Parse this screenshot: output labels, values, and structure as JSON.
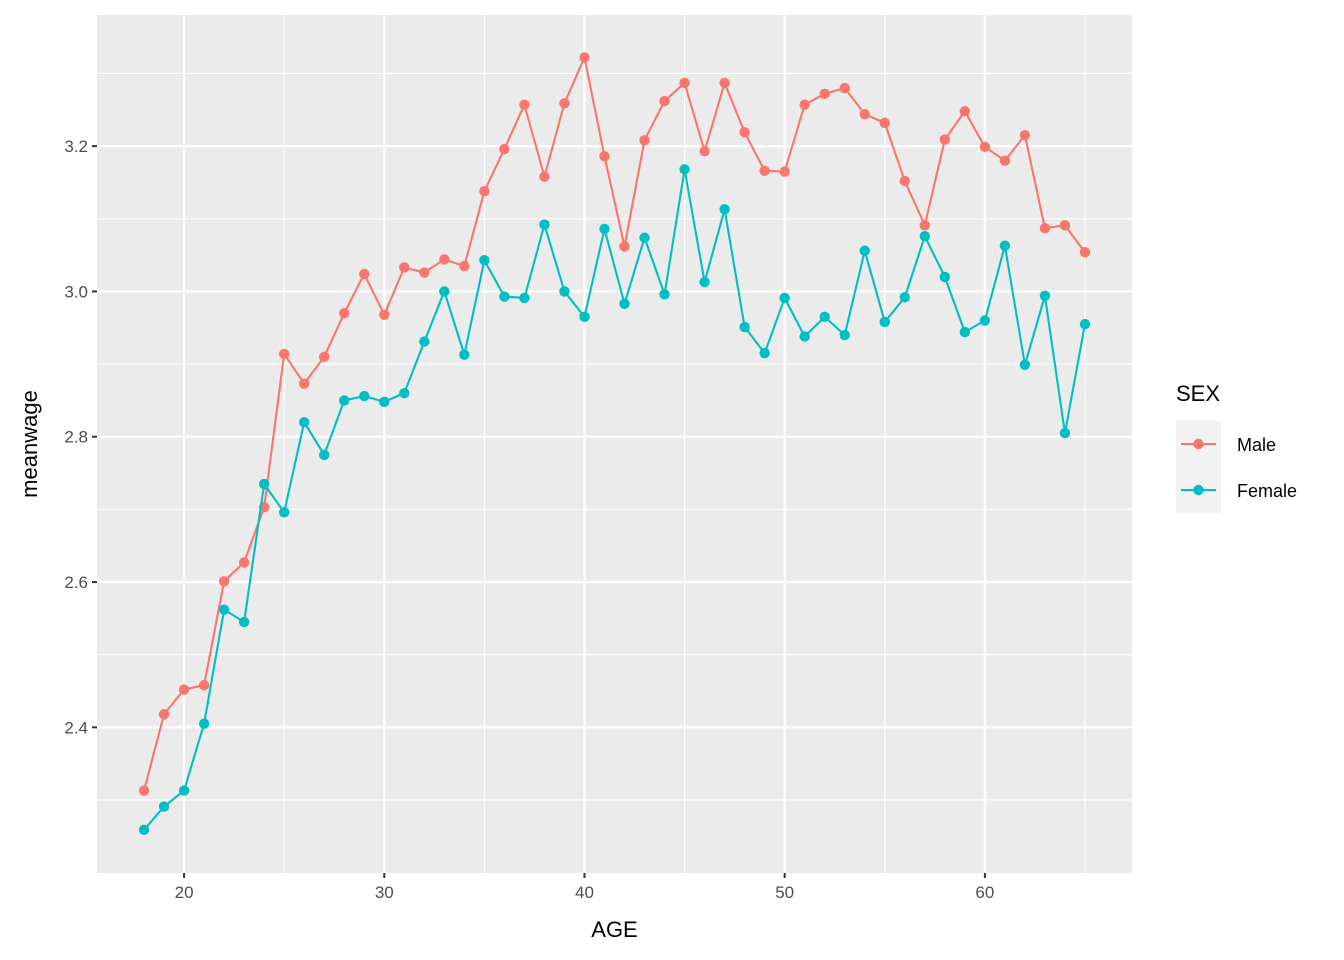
{
  "chart_data": {
    "type": "line",
    "title": "",
    "xlabel": "AGE",
    "ylabel": "meanwage",
    "xlim": [
      15.65,
      67.35
    ],
    "ylim": [
      2.1995,
      3.3805
    ],
    "x_ticks": [
      20,
      30,
      40,
      50,
      60
    ],
    "y_ticks": [
      2.4,
      2.6,
      2.8,
      3.0,
      3.2
    ],
    "x_tick_labels": [
      "20",
      "30",
      "40",
      "50",
      "60"
    ],
    "y_tick_labels": [
      "2.4",
      "2.6",
      "2.8",
      "3.0",
      "3.2"
    ],
    "grid": true,
    "legend": {
      "title": "SEX",
      "position": "right"
    },
    "x": [
      18,
      19,
      20,
      21,
      22,
      23,
      24,
      25,
      26,
      27,
      28,
      29,
      30,
      31,
      32,
      33,
      34,
      35,
      36,
      37,
      38,
      39,
      40,
      41,
      42,
      43,
      44,
      45,
      46,
      47,
      48,
      49,
      50,
      51,
      52,
      53,
      54,
      55,
      56,
      57,
      58,
      59,
      60,
      61,
      62,
      63,
      64,
      65
    ],
    "series": [
      {
        "name": "Male",
        "color": "#F8766D",
        "values": [
          2.313,
          2.418,
          2.452,
          2.458,
          2.601,
          2.627,
          2.703,
          2.914,
          2.873,
          2.91,
          2.97,
          3.024,
          2.968,
          3.033,
          3.026,
          3.044,
          3.035,
          3.138,
          3.196,
          3.257,
          3.158,
          3.259,
          3.322,
          3.186,
          3.062,
          3.208,
          3.262,
          3.287,
          3.193,
          3.287,
          3.219,
          3.166,
          3.165,
          3.257,
          3.272,
          3.28,
          3.244,
          3.232,
          3.152,
          3.091,
          3.209,
          3.248,
          3.199,
          3.18,
          3.215,
          3.087,
          3.091,
          3.054
        ]
      },
      {
        "name": "Female",
        "color": "#00BFC4",
        "values": [
          2.259,
          2.291,
          2.313,
          2.405,
          2.562,
          2.545,
          2.735,
          2.696,
          2.82,
          2.775,
          2.85,
          2.856,
          2.848,
          2.86,
          2.931,
          3.0,
          2.913,
          3.043,
          2.993,
          2.991,
          3.092,
          3.0,
          2.965,
          3.086,
          2.983,
          3.074,
          2.996,
          3.168,
          3.013,
          3.113,
          2.951,
          2.915,
          2.991,
          2.938,
          2.965,
          2.94,
          3.056,
          2.958,
          2.992,
          3.076,
          3.02,
          2.944,
          2.96,
          3.063,
          2.899,
          2.994,
          2.805,
          2.955
        ]
      }
    ]
  }
}
